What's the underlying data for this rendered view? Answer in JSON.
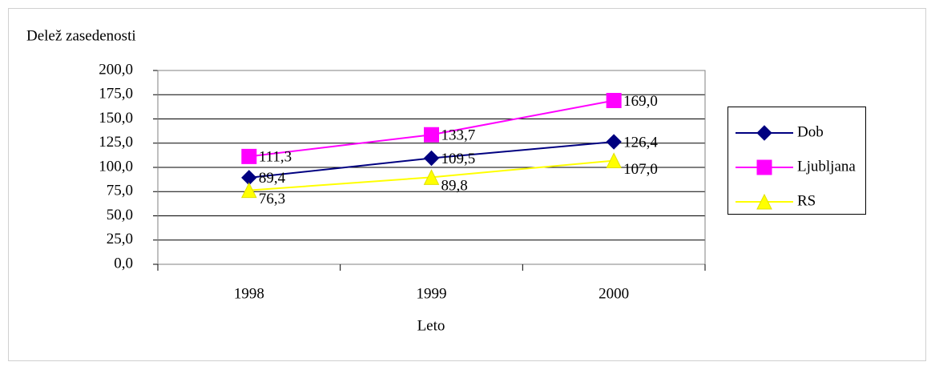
{
  "chart_data": {
    "type": "line",
    "y_label": "Delež zasedenosti",
    "x_label": "Leto",
    "categories": [
      "1998",
      "1999",
      "2000"
    ],
    "series": [
      {
        "name": "Dob",
        "color": "#000080",
        "marker": "diamond",
        "values": [
          89.4,
          109.5,
          126.4
        ],
        "value_labels": [
          "89,4",
          "109,5",
          "126,4"
        ]
      },
      {
        "name": "Ljubljana",
        "color": "#ff00ff",
        "marker": "square",
        "values": [
          111.3,
          133.7,
          169.0
        ],
        "value_labels": [
          "111,3",
          "133,7",
          "169,0"
        ]
      },
      {
        "name": "RS",
        "color": "#ffff00",
        "marker": "triangle",
        "values": [
          76.3,
          89.8,
          107.0
        ],
        "value_labels": [
          "76,3",
          "89,8",
          "107,0"
        ]
      }
    ],
    "ylim": [
      0,
      200
    ],
    "yticks": [
      {
        "value": 0,
        "label": "0,0"
      },
      {
        "value": 25,
        "label": "25,0"
      },
      {
        "value": 50,
        "label": "50,0"
      },
      {
        "value": 75,
        "label": "75,0"
      },
      {
        "value": 100,
        "label": "100,0"
      },
      {
        "value": 125,
        "label": "125,0"
      },
      {
        "value": 150,
        "label": "150,0"
      },
      {
        "value": 175,
        "label": "175,0"
      },
      {
        "value": 200,
        "label": "200,0"
      }
    ],
    "grid": true
  }
}
